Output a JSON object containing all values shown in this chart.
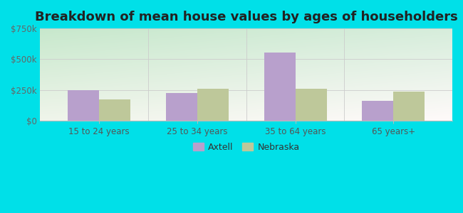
{
  "title": "Breakdown of mean house values by ages of householders",
  "categories": [
    "15 to 24 years",
    "25 to 34 years",
    "35 to 64 years",
    "65 years+"
  ],
  "axtell_values": [
    248000,
    225000,
    555000,
    160000
  ],
  "nebraska_values": [
    175000,
    262000,
    258000,
    238000
  ],
  "axtell_color": "#b8a0cc",
  "nebraska_color": "#bec89a",
  "ylim": [
    0,
    750000
  ],
  "yticks": [
    0,
    250000,
    500000,
    750000
  ],
  "ytick_labels": [
    "$0",
    "$250k",
    "$500k",
    "$750k"
  ],
  "background_color": "#00e0e8",
  "title_fontsize": 13,
  "legend_labels": [
    "Axtell",
    "Nebraska"
  ],
  "bar_width": 0.32
}
